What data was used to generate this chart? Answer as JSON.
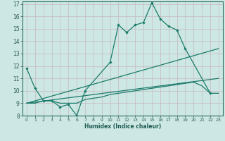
{
  "background_color": "#cde8e4",
  "grid_color": "#c8b8c0",
  "line_color": "#1a7a6a",
  "xlabel": "Humidex (Indice chaleur)",
  "xlim": [
    -0.5,
    23.5
  ],
  "ylim": [
    8,
    17.2
  ],
  "xticks": [
    0,
    1,
    2,
    3,
    4,
    5,
    6,
    7,
    8,
    9,
    10,
    11,
    12,
    13,
    14,
    15,
    16,
    17,
    18,
    19,
    20,
    21,
    22,
    23
  ],
  "yticks": [
    8,
    9,
    10,
    11,
    12,
    13,
    14,
    15,
    16,
    17
  ],
  "series": [
    {
      "x": [
        0,
        1,
        2,
        3,
        4,
        5,
        6,
        7,
        10,
        11,
        12,
        13,
        14,
        15,
        16,
        17,
        18,
        19,
        22
      ],
      "y": [
        11.8,
        10.2,
        9.2,
        9.2,
        8.7,
        8.9,
        8.0,
        10.0,
        12.3,
        15.3,
        14.7,
        15.3,
        15.5,
        17.1,
        15.8,
        15.2,
        14.9,
        13.4,
        9.8
      ],
      "with_markers": true
    },
    {
      "x": [
        0,
        23
      ],
      "y": [
        9.0,
        13.4
      ],
      "with_markers": false
    },
    {
      "x": [
        0,
        23
      ],
      "y": [
        9.0,
        11.0
      ],
      "with_markers": false
    },
    {
      "x": [
        0,
        1,
        2,
        3,
        4,
        5,
        6,
        7,
        9,
        10,
        11,
        12,
        13,
        14,
        15,
        16,
        17,
        18,
        19,
        20,
        21,
        22,
        23
      ],
      "y": [
        9.0,
        9.0,
        9.2,
        9.2,
        9.0,
        9.0,
        9.0,
        9.3,
        9.5,
        9.7,
        9.8,
        9.9,
        10.0,
        10.1,
        10.2,
        10.3,
        10.4,
        10.5,
        10.6,
        10.7,
        10.4,
        9.8,
        9.8
      ],
      "with_markers": false
    }
  ]
}
